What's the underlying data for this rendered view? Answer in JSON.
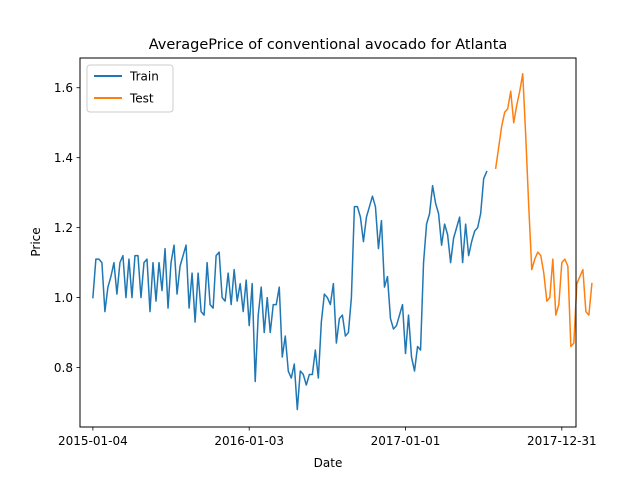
{
  "chart_data": {
    "type": "line",
    "title": "AveragePrice of conventional avocado for Atlanta",
    "xlabel": "Date",
    "ylabel": "Price",
    "x_ticks": [
      "2015-01-04",
      "2016-01-03",
      "2017-01-01",
      "2017-12-31"
    ],
    "y_ticks": [
      "0.8",
      "1.0",
      "1.2",
      "1.4",
      "1.6"
    ],
    "xlim": [
      "2014-12-05",
      "2018-02-02"
    ],
    "ylim": [
      0.63,
      1.685
    ],
    "grid": false,
    "legend_position": "top-left",
    "series": [
      {
        "name": "Train",
        "color": "#1f77b4",
        "start_date": "2015-01-04",
        "values": [
          1.0,
          1.11,
          1.11,
          1.1,
          0.96,
          1.03,
          1.06,
          1.1,
          1.01,
          1.1,
          1.12,
          1.0,
          1.11,
          1.0,
          1.12,
          1.12,
          1.0,
          1.1,
          1.11,
          0.96,
          1.1,
          0.99,
          1.1,
          1.02,
          1.14,
          0.97,
          1.1,
          1.15,
          1.01,
          1.09,
          1.12,
          1.15,
          0.97,
          1.07,
          0.93,
          1.07,
          0.96,
          0.95,
          1.1,
          0.98,
          0.97,
          1.12,
          1.13,
          1.0,
          0.99,
          1.07,
          0.98,
          1.08,
          0.99,
          1.04,
          0.96,
          1.05,
          0.92,
          1.04,
          0.76,
          0.95,
          1.03,
          0.9,
          1.0,
          0.9,
          0.98,
          0.98,
          1.03,
          0.83,
          0.89,
          0.79,
          0.77,
          0.81,
          0.68,
          0.79,
          0.78,
          0.75,
          0.78,
          0.78,
          0.85,
          0.77,
          0.93,
          1.01,
          1.0,
          0.98,
          1.04,
          0.87,
          0.94,
          0.95,
          0.89,
          0.9,
          1.0,
          1.26,
          1.26,
          1.23,
          1.16,
          1.23,
          1.26,
          1.29,
          1.26,
          1.14,
          1.22,
          1.03,
          1.06,
          0.94,
          0.91,
          0.92,
          0.95,
          0.98,
          0.84,
          0.95,
          0.83,
          0.79,
          0.86,
          0.85,
          1.1,
          1.21,
          1.24,
          1.32,
          1.27,
          1.24,
          1.15,
          1.21,
          1.18,
          1.1,
          1.17,
          1.2,
          1.23,
          1.1,
          1.21,
          1.12,
          1.16,
          1.19,
          1.2,
          1.24,
          1.34,
          1.36
        ]
      },
      {
        "name": "Test",
        "color": "#ff7f0e",
        "start_date": "2017-07-30",
        "values": [
          1.37,
          1.43,
          1.49,
          1.53,
          1.54,
          1.59,
          1.5,
          1.55,
          1.59,
          1.64,
          1.46,
          1.26,
          1.08,
          1.11,
          1.13,
          1.12,
          1.07,
          0.99,
          1.0,
          1.11,
          0.95,
          0.98,
          1.1,
          1.11,
          1.09,
          0.86,
          0.87,
          1.04,
          1.06,
          1.08,
          0.96,
          0.95,
          1.04
        ]
      }
    ]
  }
}
